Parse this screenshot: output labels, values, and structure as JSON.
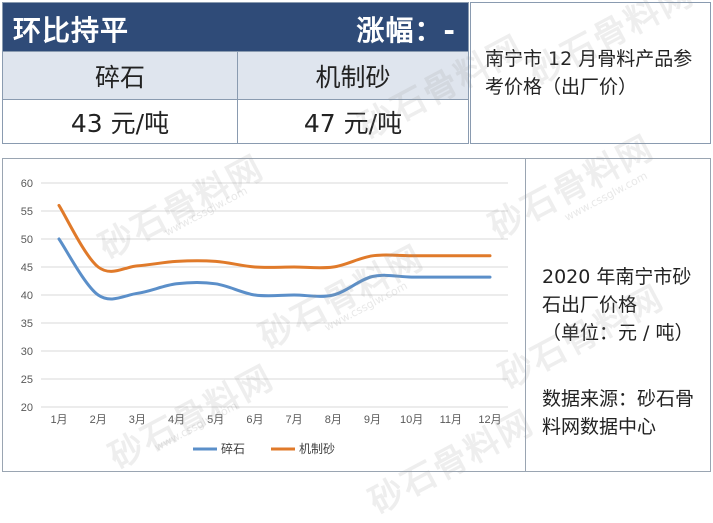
{
  "price_table": {
    "title": "环比持平",
    "change": "涨幅：-",
    "headers": [
      "碎石",
      "机制砂"
    ],
    "prices": [
      "43 元/吨",
      "47 元/吨"
    ],
    "note": "南宁市 12 月骨料产品参考价格（出厂价）"
  },
  "side_panel": {
    "title": "2020 年南宁市砂石出厂价格",
    "unit": "（单位：元 / 吨）",
    "source": "数据来源：砂石骨料网数据中心"
  },
  "watermark": {
    "logo": "砂石骨料网",
    "url": "www.cssglw.com"
  },
  "chart_data": {
    "type": "line",
    "categories": [
      "1月",
      "2月",
      "3月",
      "4月",
      "5月",
      "6月",
      "7月",
      "8月",
      "9月",
      "10月",
      "11月",
      "12月"
    ],
    "series": [
      {
        "name": "碎石",
        "values": [
          50,
          40,
          40.3,
          42,
          42,
          40,
          40,
          40,
          43.3,
          43.2,
          43.2,
          43.2
        ],
        "color": "#5b8fc9"
      },
      {
        "name": "机制砂",
        "values": [
          56,
          45,
          45.2,
          46,
          46,
          45,
          45,
          45,
          47,
          47,
          47,
          47
        ],
        "color": "#e07a2a"
      }
    ],
    "yticks": [
      20,
      25,
      30,
      35,
      40,
      45,
      50,
      55,
      60
    ],
    "ylim": [
      20,
      60
    ],
    "grid": true,
    "legend": "bottom"
  }
}
